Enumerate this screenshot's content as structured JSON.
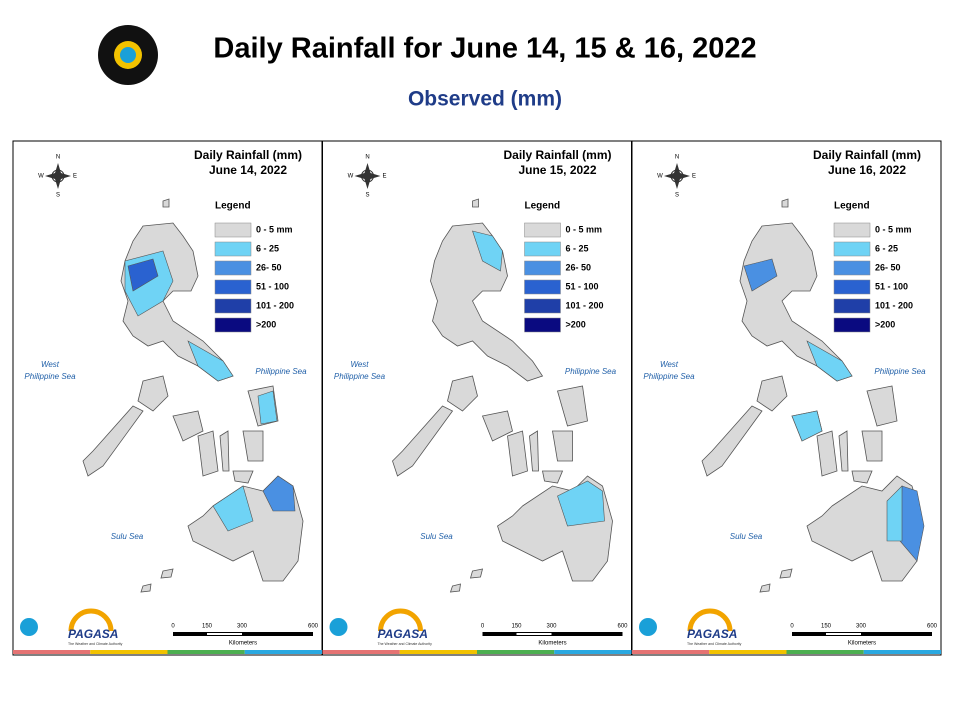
{
  "header": {
    "title": "Daily Rainfall for June 14, 15 & 16, 2022",
    "subtitle": "Observed (mm)"
  },
  "panels": [
    {
      "title": "Daily Rainfall (mm)",
      "date": "June 14, 2022"
    },
    {
      "title": "Daily Rainfall (mm)",
      "date": "June 15, 2022"
    },
    {
      "title": "Daily Rainfall (mm)",
      "date": "June 16, 2022"
    }
  ],
  "legend": {
    "title": "Legend",
    "items": [
      "0 - 5 mm",
      "6 - 25",
      "26- 50",
      "51 - 100",
      "101 - 200",
      ">200"
    ]
  },
  "seas": {
    "west": [
      "West",
      "Philippine Sea"
    ],
    "east": "Philippine Sea",
    "sulu": "Sulu Sea"
  },
  "compass": {
    "n": "N",
    "e": "E",
    "s": "S",
    "w": "W"
  },
  "scale": {
    "ticks": [
      "0",
      "150",
      "300",
      "600"
    ],
    "unit": "Kilometers"
  },
  "logo": {
    "agency": "PAGASA",
    "tagline": "The Weather and Climate Authority"
  }
}
